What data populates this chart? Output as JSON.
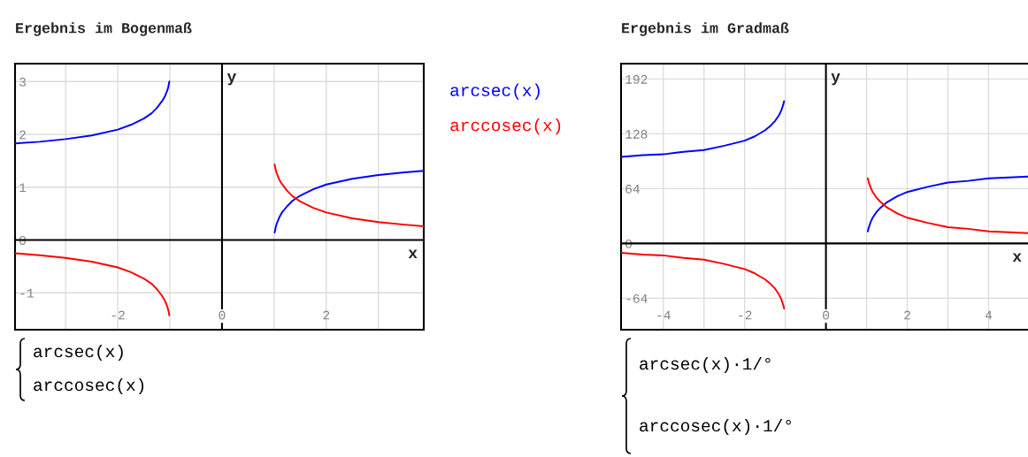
{
  "chart_data": [
    {
      "type": "line",
      "title": "Ergebnis im Bogenmaß",
      "xlabel": "x",
      "ylabel": "y",
      "x": [
        -3.97,
        -3.5,
        -3,
        -2.5,
        -2,
        -1.75,
        -1.5,
        -1.35,
        -1.25,
        -1.15,
        -1.1,
        -1.05,
        -1.03,
        -1.01,
        0,
        1.01,
        1.03,
        1.05,
        1.1,
        1.15,
        1.25,
        1.35,
        1.5,
        1.75,
        2,
        2.5,
        3,
        3.5,
        3.87
      ],
      "series": [
        {
          "name": "arcsec(x)",
          "color": "#0000ff",
          "values": [
            1.83,
            1.86,
            1.91,
            1.98,
            2.09,
            2.18,
            2.3,
            2.4,
            2.5,
            2.63,
            2.71,
            2.83,
            2.9,
            3.0,
            null,
            0.14,
            0.24,
            0.31,
            0.43,
            0.52,
            0.64,
            0.74,
            0.84,
            0.96,
            1.05,
            1.16,
            1.23,
            1.28,
            1.31
          ]
        },
        {
          "name": "arccosec(x)",
          "color": "#ff0000",
          "values": [
            -0.25,
            -0.29,
            -0.34,
            -0.41,
            -0.52,
            -0.61,
            -0.73,
            -0.83,
            -0.93,
            -1.06,
            -1.14,
            -1.26,
            -1.33,
            -1.43,
            null,
            1.43,
            1.33,
            1.26,
            1.14,
            1.06,
            0.93,
            0.83,
            0.73,
            0.61,
            0.52,
            0.41,
            0.34,
            0.29,
            0.26
          ]
        }
      ],
      "xlim": [
        -3.97,
        3.87
      ],
      "ylim": [
        -1.7,
        3.34
      ],
      "xticks": [
        {
          "value": -3,
          "label": null
        },
        -2,
        {
          "value": -1,
          "label": null
        },
        0,
        {
          "value": 1,
          "label": null
        },
        2,
        {
          "value": 3,
          "label": null
        }
      ],
      "yticks": [
        -1,
        0,
        1,
        2,
        3
      ],
      "grid": true,
      "legend": "right",
      "annotations": [
        "arcsec(x)",
        "arccosec(x)"
      ]
    },
    {
      "type": "line",
      "title": "Ergebnis im Gradmaß",
      "xlabel": "x",
      "ylabel": "y",
      "x": [
        -5.04,
        -4.5,
        -4,
        -3.5,
        -3,
        -2.5,
        -2,
        -1.75,
        -1.5,
        -1.35,
        -1.25,
        -1.15,
        -1.1,
        -1.05,
        -1.03,
        0,
        1.03,
        1.05,
        1.1,
        1.15,
        1.25,
        1.35,
        1.5,
        1.75,
        2,
        2.5,
        3,
        3.5,
        4,
        4.5,
        4.97
      ],
      "series": [
        {
          "color": "#0000ff",
          "values": [
            101,
            103,
            104,
            107,
            109,
            114,
            120,
            125,
            132,
            138,
            143,
            150,
            155,
            162,
            166,
            null,
            14,
            18,
            25,
            30,
            37,
            42,
            48,
            55,
            60,
            66,
            71,
            73,
            76,
            77,
            78
          ]
        },
        {
          "color": "#ff0000",
          "values": [
            -11,
            -13,
            -14,
            -17,
            -19,
            -24,
            -30,
            -35,
            -42,
            -48,
            -53,
            -60,
            -65,
            -72,
            -76,
            null,
            76,
            72,
            65,
            60,
            53,
            48,
            42,
            35,
            30,
            24,
            19,
            17,
            14,
            13,
            12
          ]
        }
      ],
      "xlim": [
        -5.04,
        4.97
      ],
      "ylim": [
        -100.8,
        209.9
      ],
      "xticks": [
        -4,
        {
          "value": -3,
          "label": null
        },
        -2,
        {
          "value": -1,
          "label": null
        },
        0,
        {
          "value": 1,
          "label": null
        },
        2,
        {
          "value": 3,
          "label": null
        },
        4
      ],
      "yticks": [
        -64,
        0,
        64,
        128,
        192
      ],
      "grid": true,
      "annotations": [
        "arcsec(x)·1/°",
        "arccosec(x)·1/°"
      ]
    }
  ]
}
